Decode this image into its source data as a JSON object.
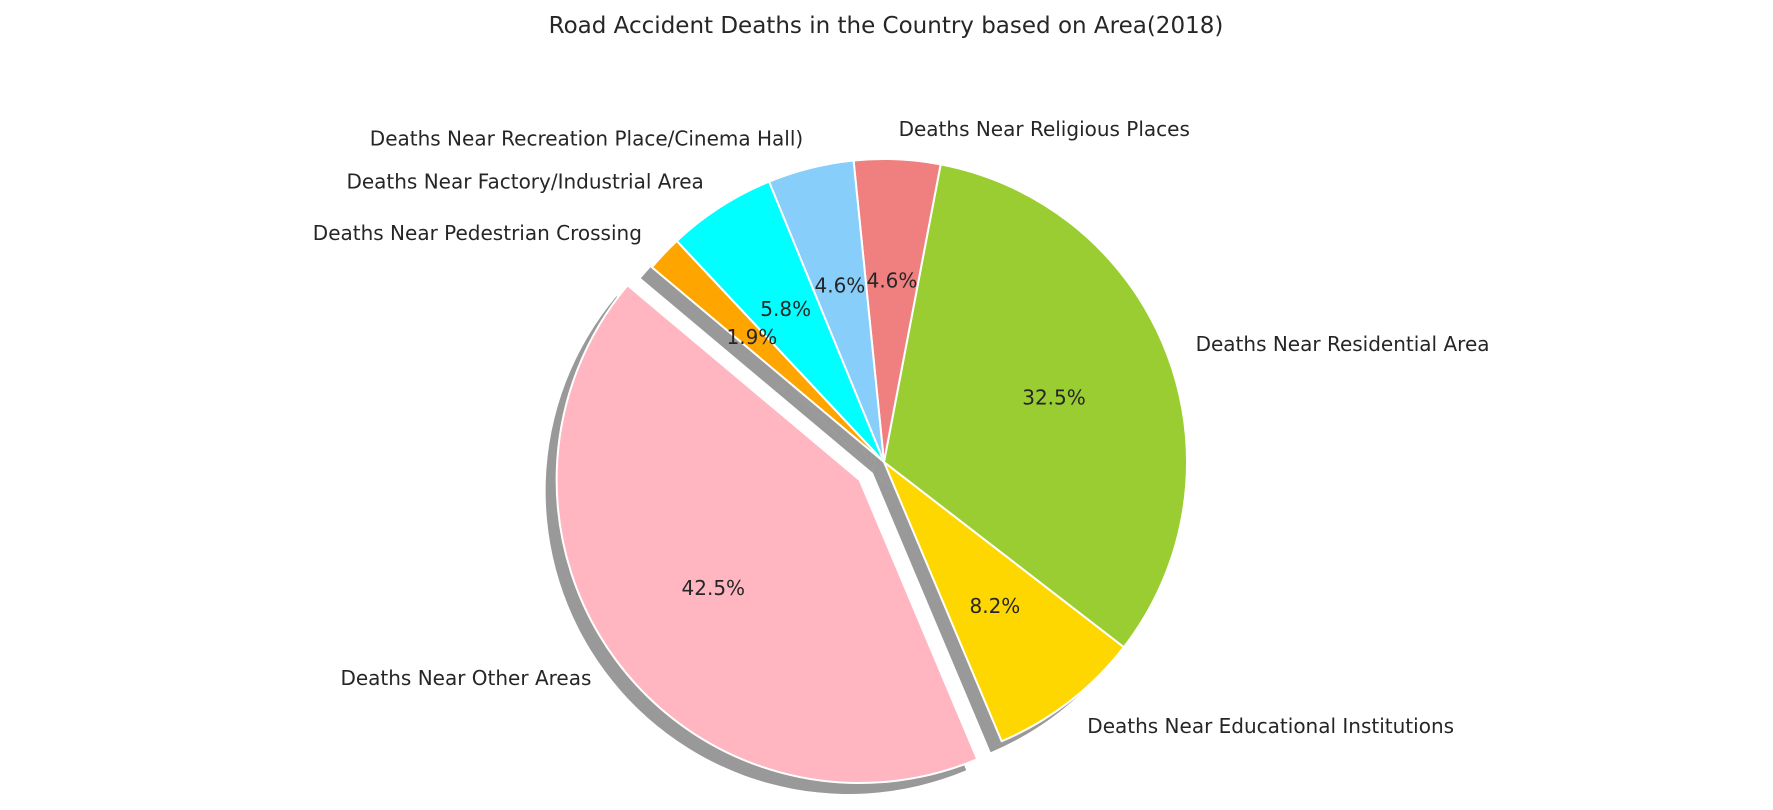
{
  "chart_data": {
    "type": "pie",
    "title": "Road Accident Deaths in the Country based on Area(2018)",
    "categories": [
      "Deaths Near Other Areas",
      "Deaths Near Educational Institutions",
      "Deaths Near Residential Area",
      "Deaths Near Religious Places",
      "Deaths Near Recreation Place/Cinema Hall)",
      "Deaths Near Factory/Industrial Area",
      "Deaths Near Pedestrian Crossing"
    ],
    "values": [
      42.5,
      8.2,
      32.5,
      4.6,
      4.6,
      5.8,
      1.9
    ],
    "percent_labels": [
      "42.5%",
      "8.2%",
      "32.5%",
      "4.6%",
      "4.6%",
      "5.8%",
      "1.9%"
    ],
    "colors": [
      "#FFB6C1",
      "#FFD700",
      "#9ACD32",
      "#F08080",
      "#87CEFA",
      "#00FFFF",
      "#FFA500"
    ],
    "exploded": [
      true,
      false,
      false,
      false,
      false,
      false,
      false
    ],
    "shadow": true,
    "legend": false
  }
}
